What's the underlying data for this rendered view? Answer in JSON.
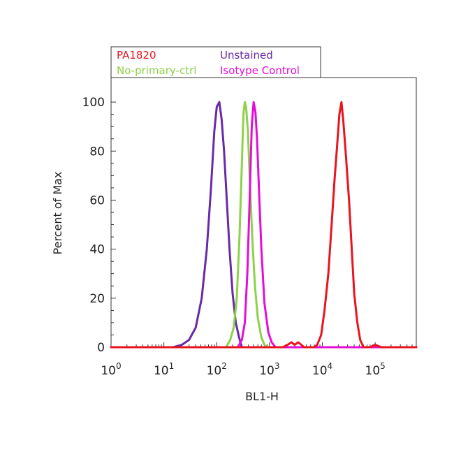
{
  "chart_data": {
    "type": "line",
    "xlabel": "BL1-H",
    "ylabel": "Percent of Max",
    "x_scale": "log",
    "xlim": [
      1,
      600000
    ],
    "ylim": [
      0,
      110
    ],
    "x_ticks": [
      {
        "value": 1,
        "base": "10",
        "exp": "0"
      },
      {
        "value": 10,
        "base": "10",
        "exp": "1"
      },
      {
        "value": 100,
        "base": "10",
        "exp": "2"
      },
      {
        "value": 1000,
        "base": "10",
        "exp": "3"
      },
      {
        "value": 10000,
        "base": "10",
        "exp": "4"
      },
      {
        "value": 100000,
        "base": "10",
        "exp": "5"
      }
    ],
    "y_ticks": [
      0,
      20,
      40,
      60,
      80,
      100
    ],
    "grid": false,
    "legend_position": "top",
    "series": [
      {
        "name": "Unstained",
        "color": "#6a2aa8",
        "x": [
          1,
          15,
          22,
          30,
          40,
          52,
          65,
          78,
          90,
          100,
          112,
          124,
          138,
          155,
          175,
          200,
          230,
          265,
          300,
          600000
        ],
        "y": [
          0,
          0,
          1,
          3,
          8,
          20,
          40,
          65,
          88,
          98,
          100,
          93,
          80,
          60,
          40,
          22,
          10,
          4,
          0,
          0
        ]
      },
      {
        "name": "No-primary-ctrl",
        "color": "#8ed14a",
        "x": [
          1,
          150,
          180,
          210,
          240,
          270,
          300,
          320,
          340,
          360,
          390,
          420,
          470,
          530,
          600,
          700,
          800,
          900,
          600000
        ],
        "y": [
          0,
          0,
          3,
          8,
          20,
          45,
          75,
          95,
          100,
          98,
          88,
          70,
          45,
          25,
          12,
          4,
          1,
          0,
          0
        ]
      },
      {
        "name": "Isotype Control",
        "color": "#e40fd6",
        "x": [
          1,
          250,
          300,
          340,
          380,
          420,
          460,
          500,
          540,
          580,
          630,
          700,
          800,
          950,
          1100,
          1300,
          1500,
          600000
        ],
        "y": [
          0,
          0,
          3,
          10,
          30,
          60,
          90,
          100,
          96,
          85,
          65,
          40,
          18,
          6,
          2,
          0,
          0,
          0
        ]
      },
      {
        "name": "PA1820",
        "color": "#e8141e",
        "x": [
          1,
          1000,
          1800,
          2200,
          2600,
          3000,
          3500,
          4000,
          4500,
          5500,
          7000,
          8000,
          9500,
          11000,
          13000,
          15000,
          17000,
          19000,
          21000,
          23000,
          25000,
          28000,
          32000,
          36000,
          40000,
          46000,
          52000,
          60000,
          80000,
          100000,
          130000,
          600000
        ],
        "y": [
          0,
          0,
          0,
          1,
          2,
          1,
          2,
          1,
          0,
          0,
          0,
          1,
          5,
          15,
          30,
          50,
          68,
          82,
          95,
          100,
          92,
          78,
          60,
          40,
          22,
          10,
          3,
          0,
          0,
          1,
          0,
          0
        ]
      }
    ]
  }
}
